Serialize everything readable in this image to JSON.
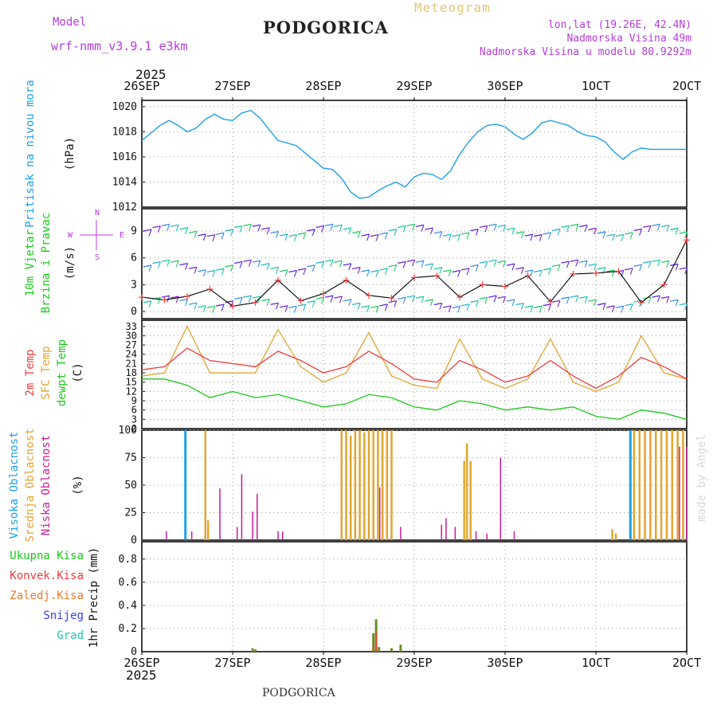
{
  "header": {
    "model_label": "Model",
    "model_name": "wrf-nmm_v3.9.1  e3km",
    "station": "PODGORICA",
    "meteogram": "Meteogram",
    "coords": "lon,lat (19.26E, 42.4N)",
    "elevation": "Nadmorska Visina 49m",
    "model_elevation": "Nadmorska Visina u modelu 80.9292m",
    "year_top": "2025",
    "year_bottom": "2025",
    "footer_station": "PODGORICA",
    "made_by": "made by Angel"
  },
  "colors": {
    "pressure": "#1ea0e6",
    "wind_speed_label": "#19c819",
    "temp2m": "#ee3c3c",
    "sfc": "#e1a532",
    "dewpt": "#19c819",
    "high_cloud": "#1ea0e6",
    "mid_cloud": "#e1a532",
    "low_cloud": "#c81e96",
    "total_precip": "#19c819",
    "conv_precip": "#ee3c3c",
    "frz_precip": "#f07828",
    "snow": "#3c3ce6",
    "hail": "#1ec8b4",
    "purple_text": "#b43cdc"
  },
  "chart_data": [
    {
      "type": "line",
      "panel": "pressure",
      "title": "Pritisak na nivou mora",
      "ylabel": "(hPa)",
      "x_ticks": [
        "26SEP",
        "27SEP",
        "28SEP",
        "29SEP",
        "30SEP",
        "1OCT",
        "2OCT"
      ],
      "ylim": [
        1012,
        1020.5
      ],
      "y_ticks": [
        "1012",
        "1014",
        "1016",
        "1018",
        "1020"
      ],
      "x": [
        0,
        0.1,
        0.2,
        0.3,
        0.4,
        0.5,
        0.6,
        0.7,
        0.8,
        0.9,
        1.0,
        1.1,
        1.2,
        1.3,
        1.4,
        1.5,
        1.6,
        1.7,
        1.8,
        1.9,
        2.0,
        2.1,
        2.2,
        2.3,
        2.4,
        2.5,
        2.6,
        2.7,
        2.8,
        2.9,
        3.0,
        3.1,
        3.2,
        3.3,
        3.4,
        3.5,
        3.6,
        3.7,
        3.8,
        3.9,
        4.0,
        4.1,
        4.2,
        4.3,
        4.4,
        4.5,
        4.6,
        4.7,
        4.8,
        4.9,
        5.0,
        5.1,
        5.2,
        5.3,
        5.4,
        5.5,
        5.6,
        5.7,
        5.8,
        5.9,
        6.0
      ],
      "values": [
        1017.3,
        1017.9,
        1018.5,
        1018.9,
        1018.5,
        1018.0,
        1018.3,
        1019.0,
        1019.4,
        1019.0,
        1018.9,
        1019.5,
        1019.7,
        1019.1,
        1018.2,
        1017.3,
        1017.1,
        1016.9,
        1016.3,
        1015.7,
        1015.1,
        1015.0,
        1014.3,
        1013.2,
        1012.7,
        1012.8,
        1013.3,
        1013.7,
        1014.0,
        1013.6,
        1014.4,
        1014.7,
        1014.6,
        1014.2,
        1014.9,
        1016.2,
        1017.2,
        1018.0,
        1018.5,
        1018.6,
        1018.4,
        1017.8,
        1017.4,
        1017.9,
        1018.7,
        1018.9,
        1018.7,
        1018.5,
        1018.0,
        1017.7,
        1017.6,
        1017.2,
        1016.4,
        1015.8,
        1016.4,
        1016.7,
        1016.6,
        1016.6,
        1016.6,
        1016.6,
        1016.6
      ]
    },
    {
      "type": "line",
      "panel": "wind",
      "title": "10m Vjetar Brzina i Pravac",
      "ylabel": "(m/s)",
      "legend_dirs": [
        "N",
        "E",
        "W",
        "S"
      ],
      "ylim": [
        -0.8,
        11.5
      ],
      "y_ticks": [
        "0",
        "3",
        "6",
        "9"
      ],
      "x": [
        0,
        0.25,
        0.5,
        0.75,
        1.0,
        1.25,
        1.5,
        1.75,
        2.0,
        2.25,
        2.5,
        2.75,
        3.0,
        3.25,
        3.5,
        3.75,
        4.0,
        4.25,
        4.5,
        4.75,
        5.0,
        5.25,
        5.5,
        5.75,
        6.0
      ],
      "values": [
        1.6,
        1.3,
        1.7,
        2.5,
        0.6,
        1.0,
        3.5,
        1.2,
        2.0,
        3.5,
        1.8,
        1.5,
        3.8,
        4.0,
        1.6,
        3.0,
        2.8,
        4.0,
        1.1,
        4.2,
        4.3,
        4.5,
        1.0,
        3.0,
        8.0
      ]
    },
    {
      "type": "line",
      "panel": "temperature",
      "series_names": [
        "2m Temp",
        "SFC Temp",
        "dewpt Temp"
      ],
      "ylabel": "(C)",
      "ylim": [
        0,
        35
      ],
      "y_ticks": [
        "0",
        "3",
        "6",
        "9",
        "12",
        "15",
        "18",
        "21",
        "24",
        "27",
        "30",
        "33"
      ],
      "x": [
        0,
        0.25,
        0.5,
        0.75,
        1.0,
        1.25,
        1.5,
        1.75,
        2.0,
        2.25,
        2.5,
        2.75,
        3.0,
        3.25,
        3.5,
        3.75,
        4.0,
        4.25,
        4.5,
        4.75,
        5.0,
        5.25,
        5.5,
        5.75,
        6.0
      ],
      "temp2m": [
        19,
        20,
        26,
        22,
        21,
        20,
        25,
        22,
        18,
        20,
        25,
        21,
        16,
        15,
        22,
        19,
        15,
        17,
        22,
        17,
        13,
        17,
        23,
        20,
        16
      ],
      "sfc": [
        17,
        18,
        33,
        18,
        18,
        18,
        32,
        20,
        15,
        18,
        31,
        17,
        14,
        13,
        29,
        16,
        13,
        16,
        29,
        15,
        12,
        15,
        30,
        18,
        16
      ],
      "dewpt": [
        16,
        16,
        14,
        10,
        12,
        10,
        11,
        9,
        7,
        8,
        11,
        10,
        7,
        6,
        9,
        8,
        6,
        7,
        6,
        7,
        4,
        3,
        6,
        5,
        3
      ]
    },
    {
      "type": "bar",
      "panel": "clouds",
      "series_names": [
        "Visoka Oblacnost",
        "Srednja Oblacnost",
        "Niska Oblacnost"
      ],
      "ylabel": "(%)",
      "ylim": [
        0,
        100
      ],
      "y_ticks": [
        "0",
        "25",
        "50",
        "75",
        "100"
      ],
      "high": [
        [
          0.48,
          100
        ],
        [
          5.38,
          100
        ]
      ],
      "mid": [
        [
          0.7,
          100
        ],
        [
          0.73,
          18
        ],
        [
          2.2,
          100
        ],
        [
          2.25,
          100
        ],
        [
          2.3,
          95
        ],
        [
          2.35,
          100
        ],
        [
          2.4,
          100
        ],
        [
          2.45,
          98
        ],
        [
          2.5,
          100
        ],
        [
          2.55,
          100
        ],
        [
          2.6,
          100
        ],
        [
          2.65,
          100
        ],
        [
          2.7,
          100
        ],
        [
          2.75,
          100
        ],
        [
          3.55,
          72
        ],
        [
          3.58,
          88
        ],
        [
          3.62,
          72
        ],
        [
          5.18,
          10
        ],
        [
          5.22,
          6
        ],
        [
          5.42,
          100
        ],
        [
          5.48,
          100
        ],
        [
          5.54,
          100
        ],
        [
          5.6,
          100
        ],
        [
          5.66,
          100
        ],
        [
          5.72,
          100
        ],
        [
          5.78,
          100
        ],
        [
          5.84,
          100
        ],
        [
          5.9,
          100
        ],
        [
          5.96,
          100
        ]
      ],
      "low": [
        [
          0.27,
          8
        ],
        [
          0.55,
          8
        ],
        [
          0.86,
          47
        ],
        [
          1.05,
          12
        ],
        [
          1.1,
          60
        ],
        [
          1.22,
          26
        ],
        [
          1.27,
          42
        ],
        [
          1.5,
          8
        ],
        [
          1.55,
          8
        ],
        [
          2.62,
          48
        ],
        [
          2.85,
          12
        ],
        [
          3.3,
          14
        ],
        [
          3.35,
          20
        ],
        [
          3.45,
          12
        ],
        [
          3.68,
          8
        ],
        [
          3.8,
          6
        ],
        [
          3.95,
          75
        ],
        [
          4.1,
          8
        ],
        [
          5.92,
          85
        ],
        [
          6.0,
          85
        ]
      ]
    },
    {
      "type": "bar",
      "panel": "precip",
      "series_names": [
        "Ukupna Kisa",
        "Konvek.Kisa",
        "Zaledj.Kisa",
        "Snijeg",
        "Grad"
      ],
      "ylabel": "1hr Precip (mm)",
      "ylim": [
        0,
        0.95
      ],
      "y_ticks": [
        "0",
        "0.2",
        "0.4",
        "0.6",
        "0.8"
      ],
      "total": [
        [
          1.22,
          0.03
        ],
        [
          1.25,
          0.02
        ],
        [
          2.55,
          0.16
        ],
        [
          2.58,
          0.28
        ],
        [
          2.61,
          0.04
        ],
        [
          2.75,
          0.03
        ],
        [
          2.85,
          0.06
        ]
      ],
      "conv": [
        [
          2.55,
          0.06
        ],
        [
          2.58,
          0.17
        ],
        [
          2.75,
          0.02
        ]
      ]
    }
  ]
}
